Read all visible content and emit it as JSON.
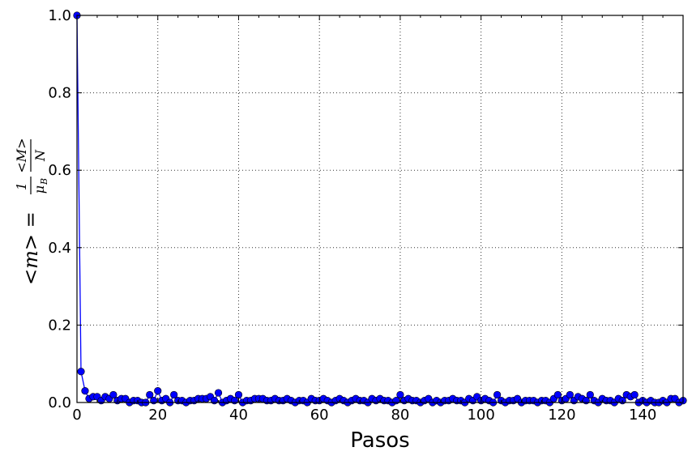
{
  "chart_data": {
    "type": "line",
    "xlabel": "Pasos",
    "ylabel": {
      "lhs": "<m> = ",
      "frac1_num": "1",
      "frac1_den": "μ",
      "frac1_den_sub": "B",
      "frac2_num": "<M>",
      "frac2_den": "N"
    },
    "xlim": [
      0,
      150
    ],
    "ylim": [
      0.0,
      1.0
    ],
    "xticks": [
      0,
      20,
      40,
      60,
      80,
      100,
      120,
      140
    ],
    "xtick_labels": [
      "0",
      "20",
      "40",
      "60",
      "80",
      "100",
      "120",
      "140"
    ],
    "yticks": [
      0.0,
      0.2,
      0.4,
      0.6,
      0.8,
      1.0
    ],
    "ytick_labels": [
      "0.0",
      "0.2",
      "0.4",
      "0.6",
      "0.8",
      "1.0"
    ],
    "grid": true,
    "colors": {
      "series": "#0000ff"
    },
    "series": [
      {
        "x": [
          0,
          1,
          2,
          3,
          4,
          5,
          6,
          7,
          8,
          9,
          10,
          11,
          12,
          13,
          14,
          15,
          16,
          17,
          18,
          19,
          20,
          21,
          22,
          23,
          24,
          25,
          26,
          27,
          28,
          29,
          30,
          31,
          32,
          33,
          34,
          35,
          36,
          37,
          38,
          39,
          40,
          41,
          42,
          43,
          44,
          45,
          46,
          47,
          48,
          49,
          50,
          51,
          52,
          53,
          54,
          55,
          56,
          57,
          58,
          59,
          60,
          61,
          62,
          63,
          64,
          65,
          66,
          67,
          68,
          69,
          70,
          71,
          72,
          73,
          74,
          75,
          76,
          77,
          78,
          79,
          80,
          81,
          82,
          83,
          84,
          85,
          86,
          87,
          88,
          89,
          90,
          91,
          92,
          93,
          94,
          95,
          96,
          97,
          98,
          99,
          100,
          101,
          102,
          103,
          104,
          105,
          106,
          107,
          108,
          109,
          110,
          111,
          112,
          113,
          114,
          115,
          116,
          117,
          118,
          119,
          120,
          121,
          122,
          123,
          124,
          125,
          126,
          127,
          128,
          129,
          130,
          131,
          132,
          133,
          134,
          135,
          136,
          137,
          138,
          139,
          140,
          141,
          142,
          143,
          144,
          145,
          146,
          147,
          148,
          149,
          150
        ],
        "y": [
          1.0,
          0.08,
          0.03,
          0.01,
          0.015,
          0.015,
          0.005,
          0.015,
          0.01,
          0.02,
          0.005,
          0.01,
          0.01,
          0.0,
          0.005,
          0.005,
          0.0,
          0.0,
          0.02,
          0.005,
          0.03,
          0.005,
          0.01,
          0.0,
          0.02,
          0.005,
          0.005,
          0.0,
          0.005,
          0.005,
          0.01,
          0.01,
          0.01,
          0.015,
          0.005,
          0.025,
          0.0,
          0.005,
          0.01,
          0.005,
          0.02,
          0.0,
          0.005,
          0.005,
          0.01,
          0.01,
          0.01,
          0.005,
          0.005,
          0.01,
          0.005,
          0.005,
          0.01,
          0.005,
          0.0,
          0.005,
          0.005,
          0.0,
          0.01,
          0.005,
          0.005,
          0.01,
          0.005,
          0.0,
          0.005,
          0.01,
          0.005,
          0.0,
          0.005,
          0.01,
          0.005,
          0.005,
          0.0,
          0.01,
          0.005,
          0.01,
          0.005,
          0.005,
          0.0,
          0.005,
          0.02,
          0.005,
          0.01,
          0.005,
          0.005,
          0.0,
          0.005,
          0.01,
          0.0,
          0.005,
          0.0,
          0.005,
          0.005,
          0.01,
          0.005,
          0.005,
          0.0,
          0.01,
          0.005,
          0.015,
          0.005,
          0.01,
          0.005,
          0.0,
          0.02,
          0.005,
          0.0,
          0.005,
          0.005,
          0.01,
          0.0,
          0.005,
          0.005,
          0.005,
          0.0,
          0.005,
          0.005,
          0.0,
          0.01,
          0.02,
          0.005,
          0.01,
          0.02,
          0.005,
          0.015,
          0.01,
          0.005,
          0.02,
          0.005,
          0.0,
          0.01,
          0.005,
          0.005,
          0.0,
          0.01,
          0.005,
          0.02,
          0.015,
          0.02,
          0.0,
          0.005,
          0.0,
          0.005,
          0.0,
          0.0,
          0.005,
          0.0,
          0.01,
          0.01,
          0.0,
          0.005
        ]
      }
    ]
  }
}
